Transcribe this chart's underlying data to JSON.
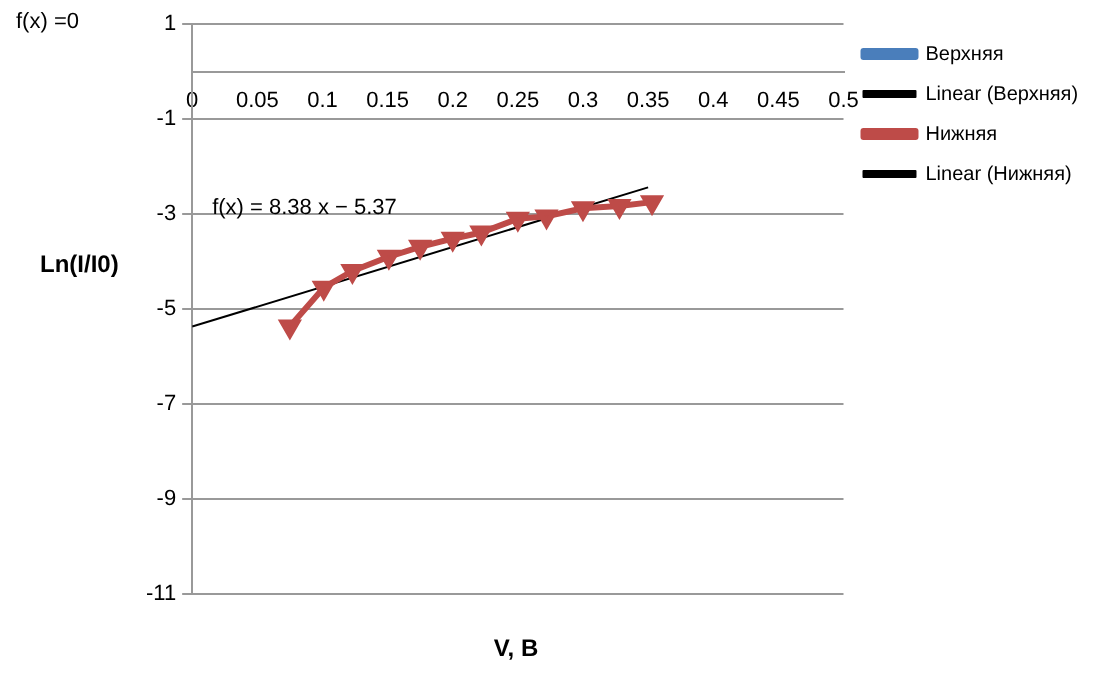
{
  "chart_data": {
    "type": "line",
    "xlabel": "V, B",
    "ylabel": "Ln(I/I0)",
    "xlim": [
      0,
      0.5
    ],
    "xticks": [
      0,
      0.05,
      0.1,
      0.15,
      0.2,
      0.25,
      0.3,
      0.35,
      0.4,
      0.45,
      0.5
    ],
    "ylim": [
      -11,
      1
    ],
    "yticks": [
      -11,
      -9,
      -7,
      -5,
      -3,
      -1,
      1
    ],
    "grid": "y",
    "legend": "right",
    "annotations": [
      "f(x) =0",
      "f(x) = 8.38 x − 5.37"
    ],
    "series": [
      {
        "name": "Верхняя",
        "type": "line",
        "color": "#4a7ebb",
        "marker": "diamond"
      },
      {
        "name": "Linear (Верхняя)",
        "type": "line",
        "color": "#000000",
        "marker": "none"
      },
      {
        "name": "Нижняя",
        "type": "line",
        "color": "#be4b48",
        "marker": "triangle",
        "x": [
          0.075,
          0.101,
          0.123,
          0.151,
          0.175,
          0.2,
          0.222,
          0.25,
          0.272,
          0.3,
          0.328,
          0.353
        ],
        "values": [
          -5.37,
          -4.55,
          -4.2,
          -3.9,
          -3.69,
          -3.52,
          -3.39,
          -3.1,
          -3.05,
          -2.88,
          -2.83,
          -2.75
        ]
      },
      {
        "name": "Linear (Нижняя)",
        "type": "line",
        "color": "#000000",
        "marker": "none",
        "x": [
          0,
          0.35
        ],
        "values": [
          -5.37,
          -2.44
        ]
      }
    ]
  }
}
